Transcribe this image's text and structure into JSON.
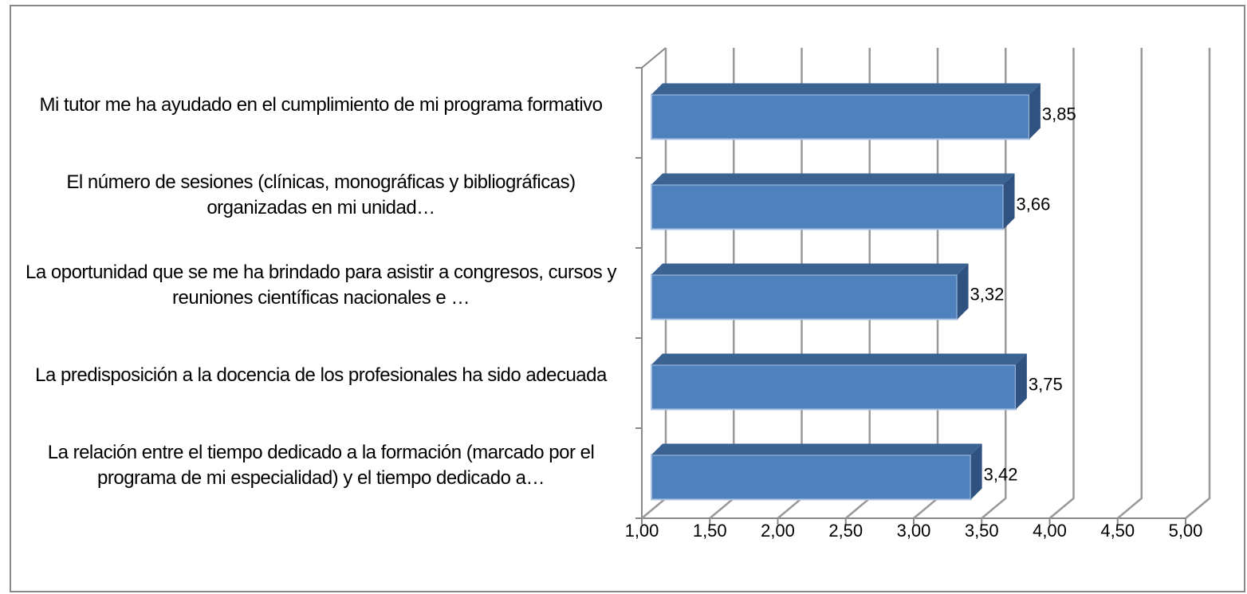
{
  "chart_data": {
    "type": "bar",
    "orientation": "horizontal",
    "categories": [
      "Mi tutor me ha ayudado en el cumplimiento de mi programa formativo",
      "El número de sesiones (clínicas, monográficas y bibliográficas) organizadas en mi unidad…",
      "La oportunidad que se me ha brindado para asistir a congresos, cursos y reuniones científicas nacionales e …",
      "La predisposición a la docencia de los profesionales ha sido adecuada",
      "La relación entre el tiempo dedicado a la formación (marcado por el programa de mi especialidad) y el tiempo dedicado a…"
    ],
    "values": [
      3.85,
      3.66,
      3.32,
      3.75,
      3.42
    ],
    "value_labels": [
      "3,85",
      "3,66",
      "3,32",
      "3,75",
      "3,42"
    ],
    "color": "#4f81bd",
    "xlim": [
      1,
      5
    ],
    "xticks": [
      {
        "value": 1,
        "label": "1,00"
      },
      {
        "value": 1.5,
        "label": "1,50"
      },
      {
        "value": 2,
        "label": "2,00"
      },
      {
        "value": 2.5,
        "label": "2,50"
      },
      {
        "value": 3,
        "label": "3,00"
      },
      {
        "value": 3.5,
        "label": "3,50"
      },
      {
        "value": 4,
        "label": "4,00"
      },
      {
        "value": 4.5,
        "label": "4,50"
      },
      {
        "value": 5,
        "label": "5,00"
      }
    ],
    "grid": true
  }
}
